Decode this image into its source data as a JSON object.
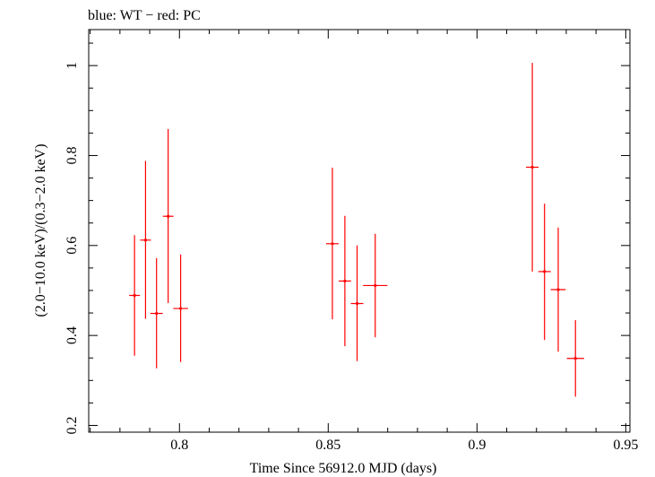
{
  "chart_data": {
    "type": "scatter",
    "title": "blue: WT − red: PC",
    "xlabel": "Time Since 56912.0 MJD (days)",
    "ylabel": "(2.0−10.0 keV)/(0.3−2.0 keV)",
    "xlim": [
      0.7695,
      0.9514
    ],
    "ylim": [
      0.185,
      1.08
    ],
    "x_ticks": [
      {
        "value": 0.8,
        "label": "0.8"
      },
      {
        "value": 0.85,
        "label": "0.85"
      },
      {
        "value": 0.9,
        "label": "0.9"
      },
      {
        "value": 0.95,
        "label": "0.95"
      }
    ],
    "y_ticks": [
      {
        "value": 0.2,
        "label": "0.2"
      },
      {
        "value": 0.4,
        "label": "0.4"
      },
      {
        "value": 0.6,
        "label": "0.6"
      },
      {
        "value": 0.8,
        "label": "0.8"
      },
      {
        "value": 1.0,
        "label": "1"
      }
    ],
    "x_minor_step": 0.01,
    "y_minor_step": 0.05,
    "grid": false,
    "series": [
      {
        "name": "PC",
        "color": "#ff0000",
        "points": [
          {
            "x": 0.7849,
            "y": 0.489,
            "xerr": 0.0018,
            "ylo": 0.355,
            "yhi": 0.623
          },
          {
            "x": 0.7886,
            "y": 0.612,
            "xerr": 0.0018,
            "ylo": 0.437,
            "yhi": 0.788
          },
          {
            "x": 0.7923,
            "y": 0.449,
            "xerr": 0.0021,
            "ylo": 0.327,
            "yhi": 0.572
          },
          {
            "x": 0.7962,
            "y": 0.665,
            "xerr": 0.0018,
            "ylo": 0.472,
            "yhi": 0.859
          },
          {
            "x": 0.8004,
            "y": 0.46,
            "xerr": 0.0025,
            "ylo": 0.341,
            "yhi": 0.58
          },
          {
            "x": 0.8514,
            "y": 0.604,
            "xerr": 0.0021,
            "ylo": 0.436,
            "yhi": 0.773
          },
          {
            "x": 0.8556,
            "y": 0.521,
            "xerr": 0.0021,
            "ylo": 0.376,
            "yhi": 0.666
          },
          {
            "x": 0.8597,
            "y": 0.471,
            "xerr": 0.0021,
            "ylo": 0.343,
            "yhi": 0.6
          },
          {
            "x": 0.8658,
            "y": 0.511,
            "xerr": 0.0041,
            "ylo": 0.396,
            "yhi": 0.626
          },
          {
            "x": 0.9186,
            "y": 0.774,
            "xerr": 0.0021,
            "ylo": 0.542,
            "yhi": 1.006
          },
          {
            "x": 0.9227,
            "y": 0.542,
            "xerr": 0.0021,
            "ylo": 0.39,
            "yhi": 0.693
          },
          {
            "x": 0.9273,
            "y": 0.502,
            "xerr": 0.0025,
            "ylo": 0.364,
            "yhi": 0.64
          },
          {
            "x": 0.9331,
            "y": 0.349,
            "xerr": 0.0029,
            "ylo": 0.264,
            "yhi": 0.434
          }
        ]
      }
    ]
  }
}
